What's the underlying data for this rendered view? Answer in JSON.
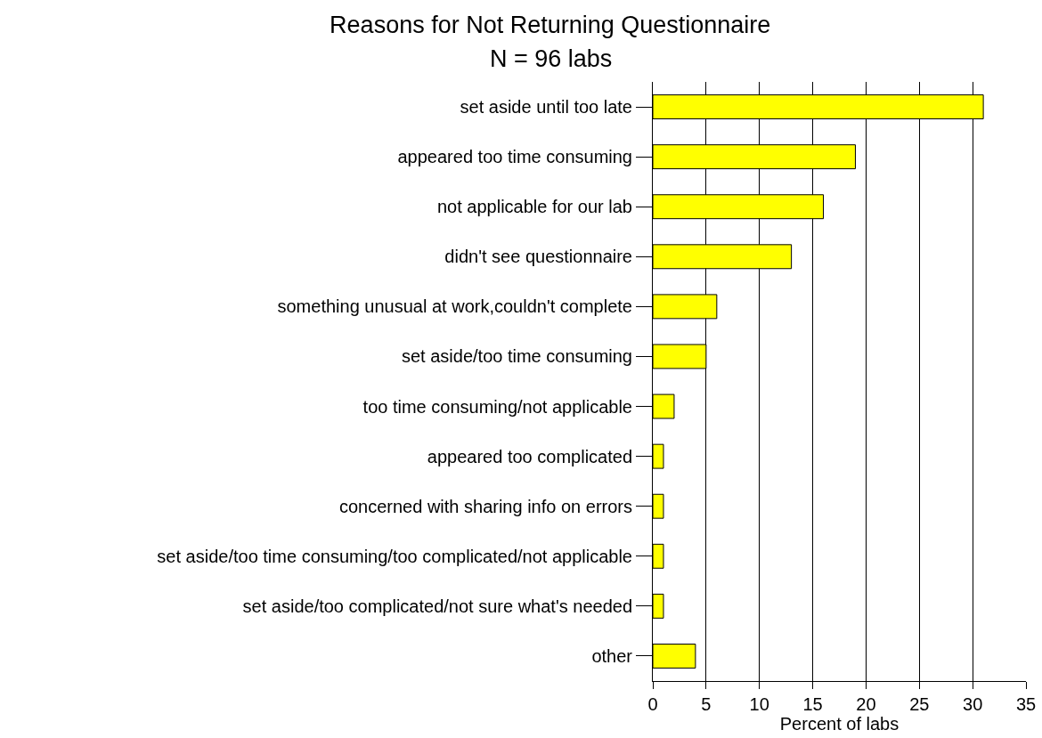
{
  "chart_data": {
    "type": "bar",
    "orientation": "horizontal",
    "title": "Reasons for Not Returning Questionnaire",
    "subtitle": "N = 96 labs",
    "xlabel": "Percent of labs",
    "categories": [
      "set aside until too late",
      "appeared too time consuming",
      "not applicable for our lab",
      "didn't see questionnaire",
      "something unusual at work,couldn't complete",
      "set aside/too time consuming",
      "too time consuming/not applicable",
      "appeared too complicated",
      "concerned with sharing info on errors",
      "set aside/too time consuming/too complicated/not applicable",
      "set aside/too complicated/not sure what's needed",
      "other"
    ],
    "values": [
      31,
      19,
      16,
      13,
      6,
      5,
      2,
      1,
      1,
      1,
      1,
      4
    ],
    "color": "#ffff00",
    "xlim": [
      0,
      35
    ],
    "xticks": [
      0,
      5,
      10,
      15,
      20,
      25,
      30,
      35
    ],
    "grid": "x",
    "legend": false
  }
}
